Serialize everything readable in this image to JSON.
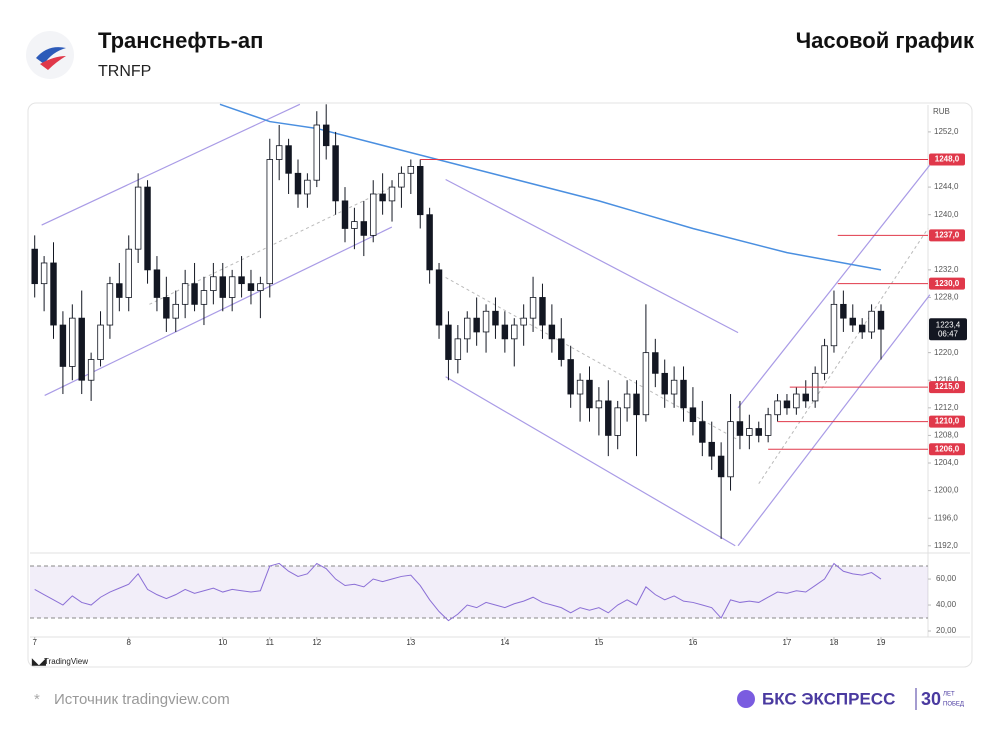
{
  "header": {
    "title": "Транснефть-ап",
    "ticker": "TRNFP",
    "timeframe": "Часовой график"
  },
  "chart_data": [
    {
      "type": "candlestick",
      "currency": "RUB",
      "up_color": "#ffffff",
      "down_color": "#131722",
      "xlim": [
        -0.5,
        95
      ],
      "ylim": [
        1191.1,
        1255.9
      ],
      "yticks": [
        {
          "value": 1192,
          "label": "1192,0"
        },
        {
          "value": 1196,
          "label": "1196,0"
        },
        {
          "value": 1200,
          "label": "1200,0"
        },
        {
          "value": 1204,
          "label": "1204,0"
        },
        {
          "value": 1208,
          "label": "1208,0"
        },
        {
          "value": 1212,
          "label": "1212,0"
        },
        {
          "value": 1216,
          "label": "1216,0"
        },
        {
          "value": 1220,
          "label": "1220,0"
        },
        {
          "value": 1228,
          "label": "1228,0"
        },
        {
          "value": 1232,
          "label": "1232,0"
        },
        {
          "value": 1240,
          "label": "1240,0"
        },
        {
          "value": 1244,
          "label": "1244,0"
        },
        {
          "value": 1252,
          "label": "1252,0"
        }
      ],
      "open": [
        1235,
        1230,
        1233,
        1224,
        1218,
        1225,
        1216,
        1219,
        1224,
        1230,
        1228,
        1235,
        1244,
        1232,
        1228,
        1225,
        1227,
        1230,
        1227,
        1229,
        1231,
        1228,
        1231,
        1230,
        1229,
        1230,
        1248,
        1250,
        1246,
        1243,
        1245,
        1253,
        1250,
        1242,
        1238,
        1239,
        1237,
        1243,
        1242,
        1244,
        1246,
        1247,
        1240,
        1232,
        1224,
        1219,
        1222,
        1225,
        1223,
        1226,
        1224,
        1222,
        1224,
        1225,
        1228,
        1224,
        1222,
        1219,
        1214,
        1216,
        1212,
        1213,
        1208,
        1212,
        1214,
        1211,
        1220,
        1217,
        1214,
        1216,
        1212,
        1210,
        1207,
        1205,
        1202,
        1210,
        1208,
        1209,
        1208,
        1211,
        1213,
        1212,
        1214,
        1213,
        1217,
        1221,
        1227,
        1225,
        1224,
        1223,
        1226
      ],
      "high": [
        1237,
        1234,
        1236,
        1226,
        1227,
        1229,
        1220,
        1226,
        1231,
        1233,
        1237,
        1246,
        1245,
        1234,
        1231,
        1229,
        1232,
        1233,
        1231,
        1233,
        1233,
        1232,
        1234,
        1232,
        1231,
        1251,
        1253,
        1251,
        1248,
        1246,
        1255,
        1256,
        1252,
        1244,
        1241,
        1242,
        1245,
        1246,
        1245,
        1247,
        1248,
        1248,
        1241,
        1233,
        1226,
        1224,
        1226,
        1228,
        1227,
        1228,
        1226,
        1225,
        1227,
        1231,
        1230,
        1227,
        1225,
        1221,
        1217,
        1218,
        1215,
        1216,
        1213,
        1216,
        1216,
        1227,
        1222,
        1219,
        1218,
        1218,
        1215,
        1213,
        1210,
        1207,
        1214,
        1213,
        1211,
        1210,
        1212,
        1214,
        1214,
        1215,
        1216,
        1218,
        1222,
        1229,
        1229,
        1227,
        1225,
        1227,
        1227
      ],
      "low": [
        1228,
        1226,
        1222,
        1214,
        1216,
        1214,
        1213,
        1218,
        1222,
        1226,
        1226,
        1233,
        1230,
        1226,
        1223,
        1223,
        1225,
        1226,
        1224,
        1227,
        1226,
        1226,
        1228,
        1227,
        1225,
        1228,
        1245,
        1243,
        1241,
        1241,
        1244,
        1248,
        1240,
        1236,
        1235,
        1234,
        1236,
        1240,
        1239,
        1241,
        1243,
        1238,
        1230,
        1222,
        1216,
        1217,
        1220,
        1221,
        1220,
        1222,
        1220,
        1218,
        1221,
        1223,
        1222,
        1220,
        1218,
        1212,
        1210,
        1210,
        1208,
        1205,
        1206,
        1210,
        1205,
        1210,
        1215,
        1212,
        1212,
        1210,
        1208,
        1205,
        1203,
        1193,
        1200,
        1206,
        1206,
        1207,
        1207,
        1210,
        1211,
        1211,
        1212,
        1212,
        1216,
        1220,
        1223,
        1223,
        1222,
        1222,
        1219
      ],
      "close": [
        1230,
        1233,
        1224,
        1218,
        1225,
        1216,
        1219,
        1224,
        1230,
        1228,
        1235,
        1244,
        1232,
        1228,
        1225,
        1227,
        1230,
        1227,
        1229,
        1231,
        1228,
        1231,
        1230,
        1229,
        1230,
        1248,
        1250,
        1246,
        1243,
        1245,
        1253,
        1250,
        1242,
        1238,
        1239,
        1237,
        1243,
        1242,
        1244,
        1246,
        1247,
        1240,
        1232,
        1224,
        1219,
        1222,
        1225,
        1223,
        1226,
        1224,
        1222,
        1224,
        1225,
        1228,
        1224,
        1222,
        1219,
        1214,
        1216,
        1212,
        1213,
        1208,
        1212,
        1214,
        1211,
        1220,
        1217,
        1214,
        1216,
        1212,
        1210,
        1207,
        1205,
        1202,
        1210,
        1208,
        1209,
        1208,
        1211,
        1213,
        1212,
        1214,
        1213,
        1217,
        1221,
        1227,
        1225,
        1224,
        1223,
        1226,
        1223.4
      ],
      "ma": {
        "color": "#4a8fe0",
        "x": [
          19.7,
          25,
          30,
          40,
          50,
          60,
          70,
          80,
          90
        ],
        "values": [
          1256,
          1253.5,
          1252.5,
          1249,
          1245.5,
          1242,
          1238,
          1234.5,
          1232
        ]
      },
      "trendlines": {
        "color": "#a99be6",
        "lines": [
          [
            1.06,
            1213.8,
            37.98,
            1238.2
          ],
          [
            0.74,
            1238.5,
            28.2,
            1256
          ],
          [
            43.7,
            1245.1,
            74.8,
            1222.9
          ],
          [
            43.7,
            1216.5,
            74.5,
            1192
          ],
          [
            74.8,
            1192,
            95.2,
            1228.4
          ],
          [
            74.8,
            1212,
            95.2,
            1247.2
          ]
        ]
      },
      "dashed_lines": [
        [
          12.2,
          1227,
          37.7,
          1243.8
        ],
        [
          43.7,
          1230.9,
          74.6,
          1207.5
        ],
        [
          77,
          1201,
          95,
          1238
        ]
      ],
      "levels": {
        "color": "#e0384a",
        "items": [
          {
            "value": 1248,
            "label": "1248,0",
            "from": 41
          },
          {
            "value": 1237,
            "label": "1237,0",
            "from": 85.4
          },
          {
            "value": 1230,
            "label": "1230,0",
            "from": 85.4
          },
          {
            "value": 1215,
            "label": "1215,0",
            "from": 80.3
          },
          {
            "value": 1210,
            "label": "1210,0",
            "from": 79
          },
          {
            "value": 1206,
            "label": "1206,0",
            "from": 78
          }
        ]
      },
      "last": {
        "value": 1223.4,
        "label": "1223,4",
        "time": "06:47"
      }
    },
    {
      "type": "line",
      "color": "#8b6fd6",
      "xlim": [
        -0.5,
        95
      ],
      "ylim": [
        15.4,
        78.5
      ],
      "bands": [
        30,
        70
      ],
      "yticks": [
        {
          "value": 20,
          "label": "20,00"
        },
        {
          "value": 40,
          "label": "40,00"
        },
        {
          "value": 60,
          "label": "60,00"
        }
      ],
      "xticks": [
        {
          "value": 0,
          "label": "7"
        },
        {
          "value": 10,
          "label": "8"
        },
        {
          "value": 20,
          "label": "10"
        },
        {
          "value": 25,
          "label": "11"
        },
        {
          "value": 30,
          "label": "12"
        },
        {
          "value": 40,
          "label": "13"
        },
        {
          "value": 50,
          "label": "14"
        },
        {
          "value": 60,
          "label": "15"
        },
        {
          "value": 70,
          "label": "16"
        },
        {
          "value": 80,
          "label": "17"
        },
        {
          "value": 85,
          "label": "18"
        },
        {
          "value": 90,
          "label": "19"
        }
      ],
      "values": [
        52,
        48,
        44,
        40,
        47,
        42,
        40,
        46,
        50,
        53,
        56,
        64,
        52,
        48,
        45,
        48,
        52,
        49,
        51,
        53,
        50,
        52,
        51,
        50,
        51,
        70,
        72,
        66,
        62,
        64,
        72,
        68,
        60,
        55,
        56,
        54,
        60,
        58,
        60,
        62,
        63,
        55,
        44,
        35,
        28,
        33,
        40,
        38,
        42,
        40,
        38,
        41,
        43,
        46,
        42,
        40,
        38,
        34,
        38,
        36,
        38,
        34,
        40,
        44,
        40,
        54,
        48,
        44,
        47,
        43,
        42,
        40,
        38,
        30,
        44,
        42,
        43,
        42,
        46,
        50,
        49,
        51,
        50,
        55,
        60,
        72,
        66,
        64,
        63,
        65,
        60
      ]
    }
  ],
  "tradingview": "TradingView",
  "footer": {
    "source": "Источник tradingview.com",
    "brand": "БКС ЭКСПРЕСС",
    "anniversary": "30",
    "years": "ЛЕТ",
    "victories": "ПОБЕД"
  }
}
